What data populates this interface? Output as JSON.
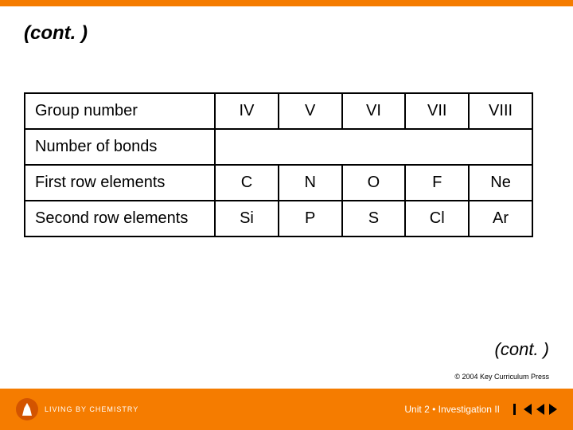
{
  "title": "(cont. )",
  "table": {
    "rows": [
      {
        "label": "Group number",
        "cells": [
          "IV",
          "V",
          "VI",
          "VII",
          "VIII"
        ]
      },
      {
        "label": "Number of bonds",
        "cells": [
          "",
          "",
          "",
          "",
          ""
        ],
        "merged_empty": true
      },
      {
        "label": "First row elements",
        "cells": [
          "C",
          "N",
          "O",
          "F",
          "Ne"
        ]
      },
      {
        "label": "Second row elements",
        "cells": [
          "Si",
          "P",
          "S",
          "Cl",
          "Ar"
        ]
      }
    ]
  },
  "cont_bottom": "(cont. )",
  "copyright": "© 2004 Key Curriculum Press",
  "footer": {
    "logo_text": "LIVING BY CHEMISTRY",
    "unit_text": "Unit 2 • Investigation II"
  },
  "colors": {
    "accent": "#f57c00",
    "border": "#000000",
    "text": "#000000",
    "footer_text": "#ffffff"
  }
}
